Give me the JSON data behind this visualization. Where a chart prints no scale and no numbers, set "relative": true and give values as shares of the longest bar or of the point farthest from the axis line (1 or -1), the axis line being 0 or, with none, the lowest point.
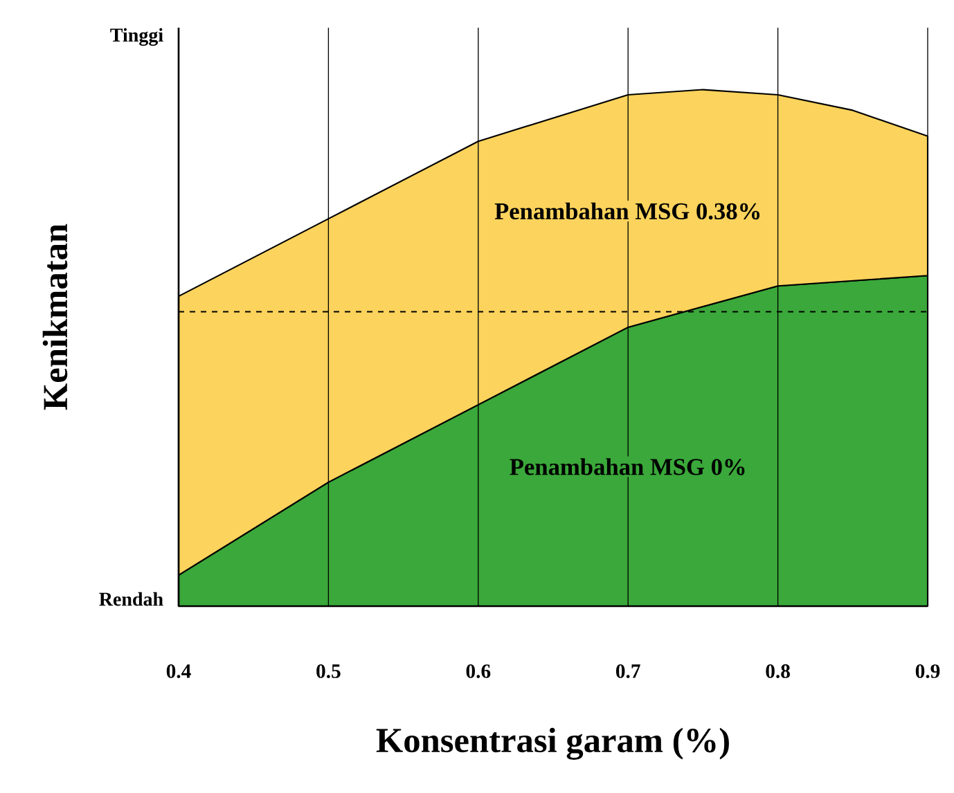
{
  "chart_data": {
    "type": "area",
    "xlabel": "Konsentrasi garam  (%)",
    "ylabel": "Kenikmatan",
    "relative": true,
    "stacked": true,
    "x": [
      0.4,
      0.5,
      0.6,
      0.7,
      0.75,
      0.8,
      0.85,
      0.9
    ],
    "series": [
      {
        "name": "Penambahan MSG **0%**",
        "color": "#3aa83a",
        "values": [
          0.06,
          0.24,
          0.39,
          0.54,
          0.58,
          0.62,
          0.63,
          0.64
        ]
      },
      {
        "name": "Penambahan MSG **0.38%**",
        "color": "#fcd35c",
        "values": [
          0.54,
          0.51,
          0.51,
          0.45,
          0.42,
          0.37,
          0.33,
          0.27
        ]
      }
    ],
    "xlim": [
      0.4,
      0.9
    ],
    "xticks": [
      0.4,
      0.5,
      0.6,
      0.7,
      0.8,
      0.9
    ],
    "annotations": [
      "Tinggi",
      "Rendah"
    ],
    "grid": "x",
    "ref_lines": [
      {
        "axis": "y",
        "value": 0.57,
        "line_style": "dashed"
      }
    ]
  }
}
